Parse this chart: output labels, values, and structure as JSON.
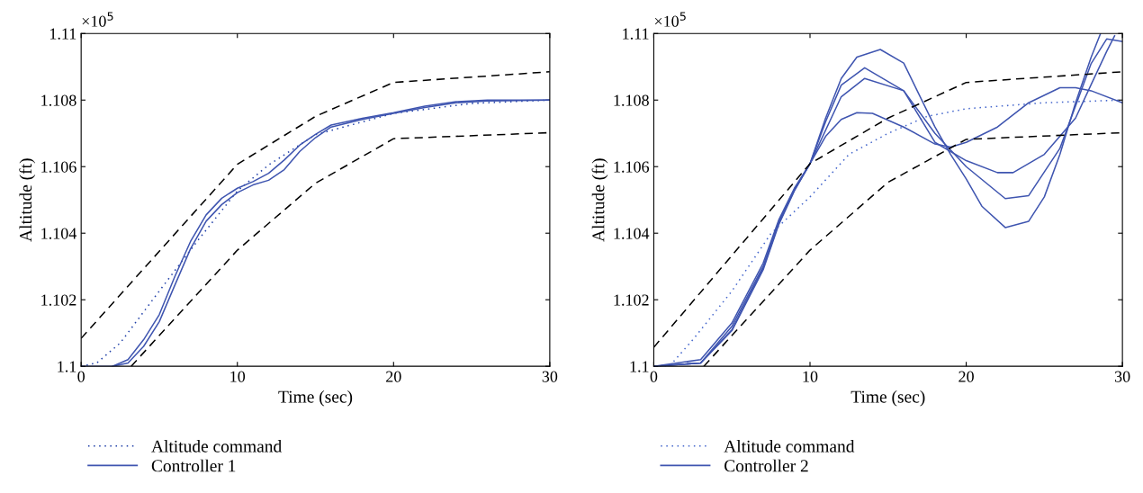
{
  "chart_data": [
    {
      "type": "line",
      "xlabel": "Time (sec)",
      "ylabel": "Altitude (ft)",
      "annotations": [
        "×10$^{5}$"
      ],
      "xlim": [
        0,
        30
      ],
      "ylim": [
        1.1,
        1.11
      ],
      "xticks": [
        0,
        10,
        20,
        30
      ],
      "yticks": [
        1.1,
        1.102,
        1.104,
        1.106,
        1.108,
        1.11
      ],
      "grid": false,
      "legend": "bottom",
      "series": [
        {
          "name": "Altitude command",
          "color": "#1f3fa8",
          "line_style": "dotted",
          "x": [
            0,
            1,
            2.5,
            5,
            7.5,
            10,
            12,
            15,
            20,
            25,
            30
          ],
          "values": [
            1.1,
            1.1001,
            1.1007,
            1.10226,
            1.1038,
            1.10527,
            1.10605,
            1.10696,
            1.1076,
            1.1079,
            1.108
          ]
        },
        {
          "name": "Controller 1",
          "color": "#3f55b0",
          "line_style": "solid",
          "x": [
            0,
            2,
            3,
            4,
            5,
            6,
            7,
            8,
            9,
            10,
            11,
            12,
            13,
            14,
            15,
            16,
            18,
            20,
            22,
            24,
            26,
            30
          ],
          "values": [
            1.1,
            1.1,
            1.1001,
            1.1006,
            1.10134,
            1.10244,
            1.10353,
            1.10436,
            1.10486,
            1.10522,
            1.10545,
            1.10559,
            1.10591,
            1.10646,
            1.10687,
            1.10719,
            1.10742,
            1.1076,
            1.10778,
            1.10792,
            1.10797,
            1.108
          ]
        },
        {
          "color": "#3f55b0",
          "line_style": "solid",
          "x": [
            2,
            3,
            4,
            5,
            6,
            7,
            8,
            9,
            10,
            11,
            12,
            13,
            14,
            15,
            16,
            18,
            20,
            22,
            24,
            26,
            30
          ],
          "values": [
            1.1,
            1.1002,
            1.1008,
            1.10155,
            1.1027,
            1.10375,
            1.10455,
            1.10505,
            1.10535,
            1.10555,
            1.1058,
            1.1062,
            1.10665,
            1.10697,
            1.10725,
            1.10745,
            1.10762,
            1.10782,
            1.10795,
            1.108,
            1.108
          ]
        },
        {
          "color": "#000000",
          "line_style": "dashed",
          "x": [
            0,
            10,
            15,
            20,
            30
          ],
          "values": [
            1.10084,
            1.10607,
            1.10751,
            1.10853,
            1.10885
          ]
        },
        {
          "color": "#000000",
          "line_style": "dashed",
          "x": [
            3.2,
            10,
            15,
            20,
            30
          ],
          "values": [
            1.1,
            1.10349,
            1.1055,
            1.10684,
            1.10702
          ]
        }
      ]
    },
    {
      "type": "line",
      "xlabel": "Time (sec)",
      "ylabel": "Altitude (ft)",
      "annotations": [
        "×10$^{5}$"
      ],
      "xlim": [
        0,
        30
      ],
      "ylim": [
        1.1,
        1.11
      ],
      "xticks": [
        0,
        10,
        20,
        30
      ],
      "yticks": [
        1.1,
        1.102,
        1.104,
        1.106,
        1.108,
        1.11
      ],
      "grid": false,
      "legend": "bottom",
      "series": [
        {
          "name": "Altitude command",
          "color": "#4466cc",
          "line_style": "dotted",
          "x": [
            0,
            1,
            2.5,
            5,
            7.5,
            10,
            12.5,
            15,
            17.5,
            20,
            25,
            30
          ],
          "values": [
            1.1,
            1.1,
            1.1008,
            1.10226,
            1.10399,
            1.10509,
            1.10637,
            1.107,
            1.10751,
            1.10774,
            1.10792,
            1.108
          ]
        },
        {
          "name": "Controller 2",
          "color": "#3f55b0",
          "line_style": "solid",
          "x": [
            0,
            3,
            5,
            7,
            8,
            9,
            10,
            11,
            12,
            13,
            14.5,
            16,
            18,
            19,
            20,
            21,
            22.5,
            24,
            25,
            26,
            27,
            28,
            28.6
          ],
          "values": [
            1.1,
            1.1001,
            1.10107,
            1.1029,
            1.10426,
            1.10527,
            1.10609,
            1.10746,
            1.10865,
            1.10929,
            1.10952,
            1.10911,
            1.10719,
            1.10637,
            1.10563,
            1.10481,
            1.10417,
            1.10436,
            1.10509,
            1.10637,
            1.10792,
            1.10929,
            1.11
          ]
        },
        {
          "color": "#3f55b0",
          "line_style": "solid",
          "x": [
            0,
            3,
            5,
            7,
            8,
            9,
            10,
            11,
            12,
            13.5,
            16,
            18,
            20,
            22.5,
            24,
            26,
            28,
            29,
            30
          ],
          "values": [
            1.1,
            1.1001,
            1.1011,
            1.10295,
            1.1043,
            1.1053,
            1.10609,
            1.10735,
            1.10845,
            1.10897,
            1.10828,
            1.107,
            1.106,
            1.10504,
            1.10513,
            1.10655,
            1.1091,
            1.10984,
            1.10976
          ]
        },
        {
          "color": "#3f55b0",
          "line_style": "solid",
          "x": [
            0,
            3,
            5,
            7,
            8,
            9,
            10,
            12,
            13.5,
            16,
            18,
            20,
            22,
            23,
            25,
            27,
            28,
            29,
            29.5
          ],
          "values": [
            1.1,
            1.1001,
            1.1012,
            1.103,
            1.10435,
            1.10532,
            1.10609,
            1.1081,
            1.10865,
            1.10828,
            1.10673,
            1.10618,
            1.10582,
            1.10582,
            1.10637,
            1.10746,
            1.10847,
            1.10947,
            1.10993
          ]
        },
        {
          "color": "#3f55b0",
          "line_style": "solid",
          "x": [
            0,
            3,
            5,
            7,
            8,
            9,
            10,
            11,
            12,
            13,
            14,
            16,
            18,
            19,
            20,
            22,
            24,
            26,
            27,
            28,
            30
          ],
          "values": [
            1.1,
            1.1002,
            1.1013,
            1.1031,
            1.1044,
            1.10535,
            1.10609,
            1.10691,
            1.10742,
            1.10762,
            1.1076,
            1.10719,
            1.10668,
            1.10659,
            1.10673,
            1.10719,
            1.10792,
            1.10837,
            1.10837,
            1.10828,
            1.10792
          ]
        },
        {
          "color": "#000000",
          "line_style": "dashed",
          "x": [
            0,
            10,
            15,
            20,
            30
          ],
          "values": [
            1.10057,
            1.10609,
            1.10746,
            1.10853,
            1.10885
          ]
        },
        {
          "color": "#000000",
          "line_style": "dashed",
          "x": [
            3.2,
            10,
            15,
            20,
            30
          ],
          "values": [
            1.1,
            1.10349,
            1.10553,
            1.10682,
            1.10702
          ]
        }
      ]
    }
  ]
}
